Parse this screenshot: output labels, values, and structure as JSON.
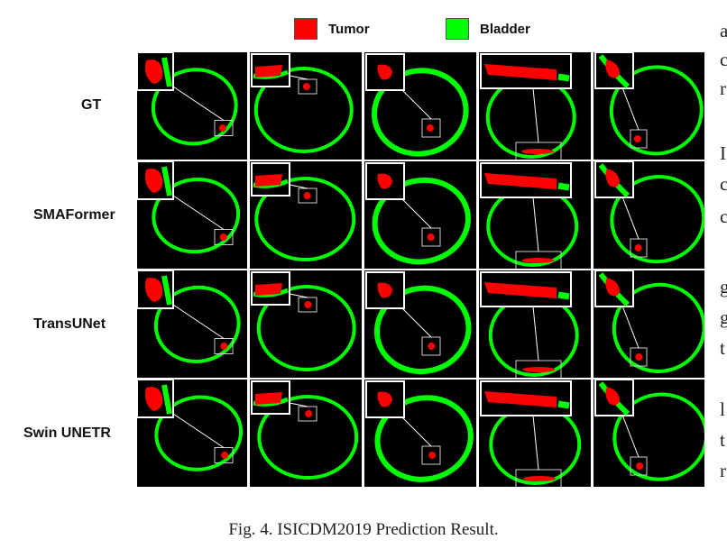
{
  "figure": {
    "legend": [
      {
        "label": "Tumor",
        "color": "#ff0000"
      },
      {
        "label": "Bladder",
        "color": "#00ff00"
      }
    ],
    "rows": [
      {
        "label": "GT"
      },
      {
        "label": "SMAFormer"
      },
      {
        "label": "TransUNet"
      },
      {
        "label": "Swin UNETR"
      }
    ],
    "columns": 5,
    "caption": "Fig. 4.  ISICDM2019 Prediction Result."
  },
  "side_text": [
    "a",
    "c",
    "r",
    "I",
    "c",
    "c",
    "g",
    "g",
    "t",
    "l",
    "t",
    "r"
  ]
}
